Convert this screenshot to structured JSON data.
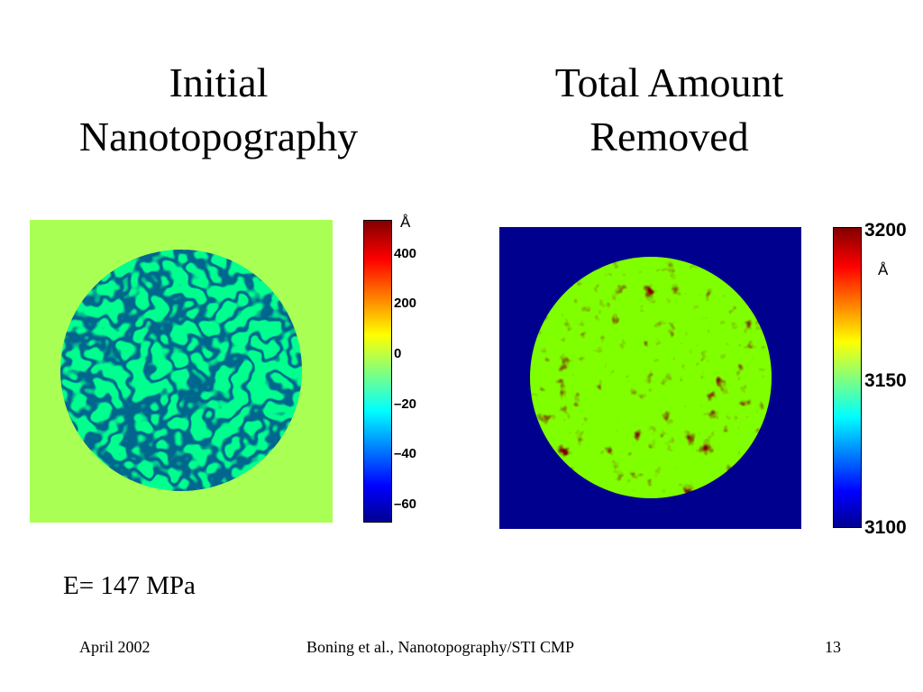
{
  "slide": {
    "title_left": [
      "Initial",
      "Nanotopography"
    ],
    "title_right": [
      "Total Amount",
      "Removed"
    ],
    "modulus_label": "E= 147 MPa"
  },
  "left_map": {
    "unit": "Å",
    "colorbar_ticks": [
      "400",
      "200",
      "0",
      "–20",
      "–40",
      "–60"
    ],
    "background_color": "#aaff55"
  },
  "right_map": {
    "unit": "Å",
    "colorbar_ticks": [
      "3200",
      "3150",
      "3100"
    ],
    "background_color": "#00008f"
  },
  "colormap": [
    "#00008f",
    "#0000ff",
    "#00ffff",
    "#ffff00",
    "#ff0000",
    "#800000"
  ],
  "footer": {
    "date": "April 2002",
    "citation": "Boning et al., Nanotopography/STI CMP",
    "page": "13"
  }
}
